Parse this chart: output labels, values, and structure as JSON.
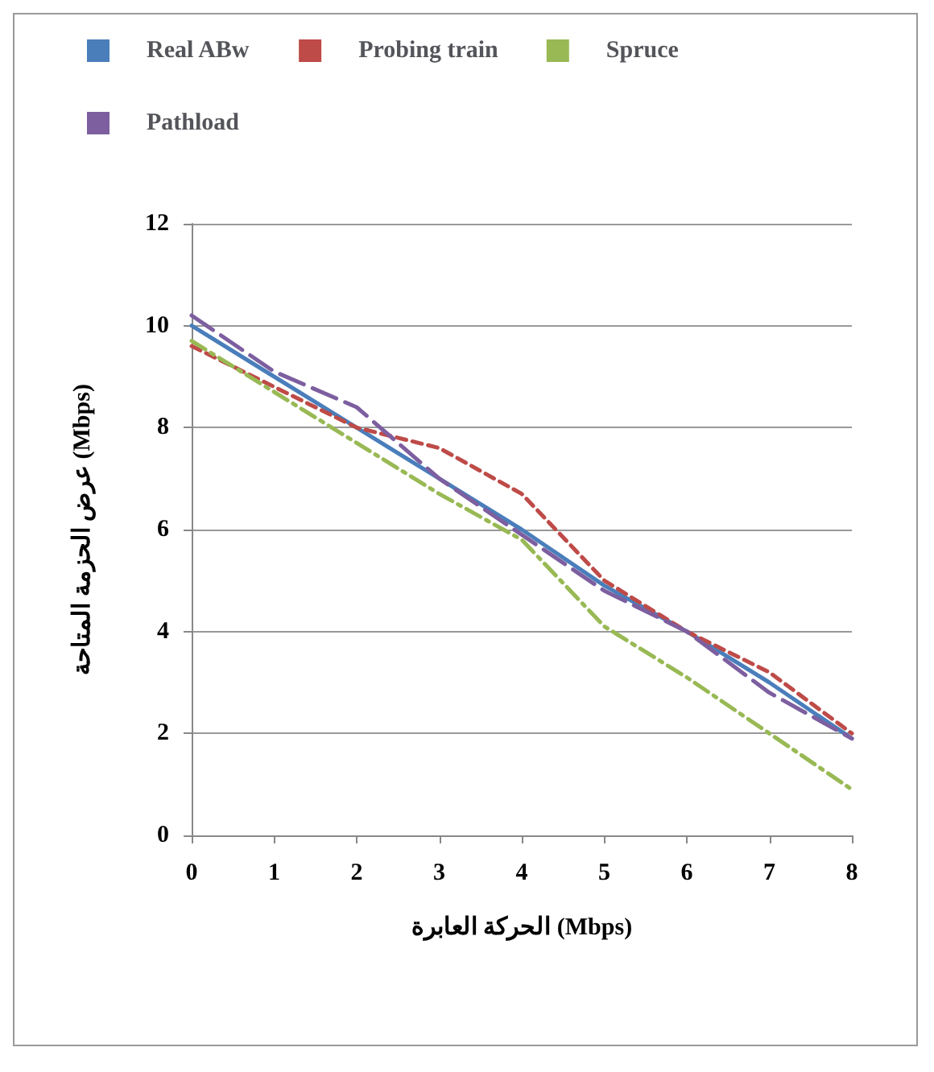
{
  "chart_data": {
    "type": "line",
    "xlabel": "الحركة العابرة (Mbps)",
    "ylabel": "عرض الحزمة المتاحة (Mbps)",
    "categories": [
      "0",
      "1",
      "2",
      "3",
      "4",
      "5",
      "6",
      "7",
      "8"
    ],
    "series": [
      {
        "name": "Real ABw",
        "color": "#4a7ebb",
        "line_style": "solid",
        "values": [
          10,
          9,
          8,
          7,
          6,
          4.9,
          4,
          3,
          1.9
        ]
      },
      {
        "name": "Probing train",
        "color": "#be4b48",
        "line_style": "dashed",
        "values": [
          9.6,
          8.8,
          8,
          7.6,
          6.7,
          5,
          4,
          3.2,
          2
        ]
      },
      {
        "name": "Spruce",
        "color": "#98b954",
        "line_style": "dashdot",
        "values": [
          9.7,
          8.7,
          7.7,
          6.7,
          5.8,
          4.1,
          3.1,
          2,
          0.9
        ]
      },
      {
        "name": "Pathload",
        "color": "#7d5fa0",
        "line_style": "longdash",
        "values": [
          10.2,
          9.1,
          8.4,
          7,
          5.9,
          4.8,
          4,
          2.8,
          1.9
        ]
      }
    ],
    "ylim": [
      0,
      12
    ],
    "yticks": [
      0,
      2,
      4,
      6,
      8,
      10,
      12
    ],
    "grid": "y",
    "legend": "top",
    "marker": "none"
  }
}
